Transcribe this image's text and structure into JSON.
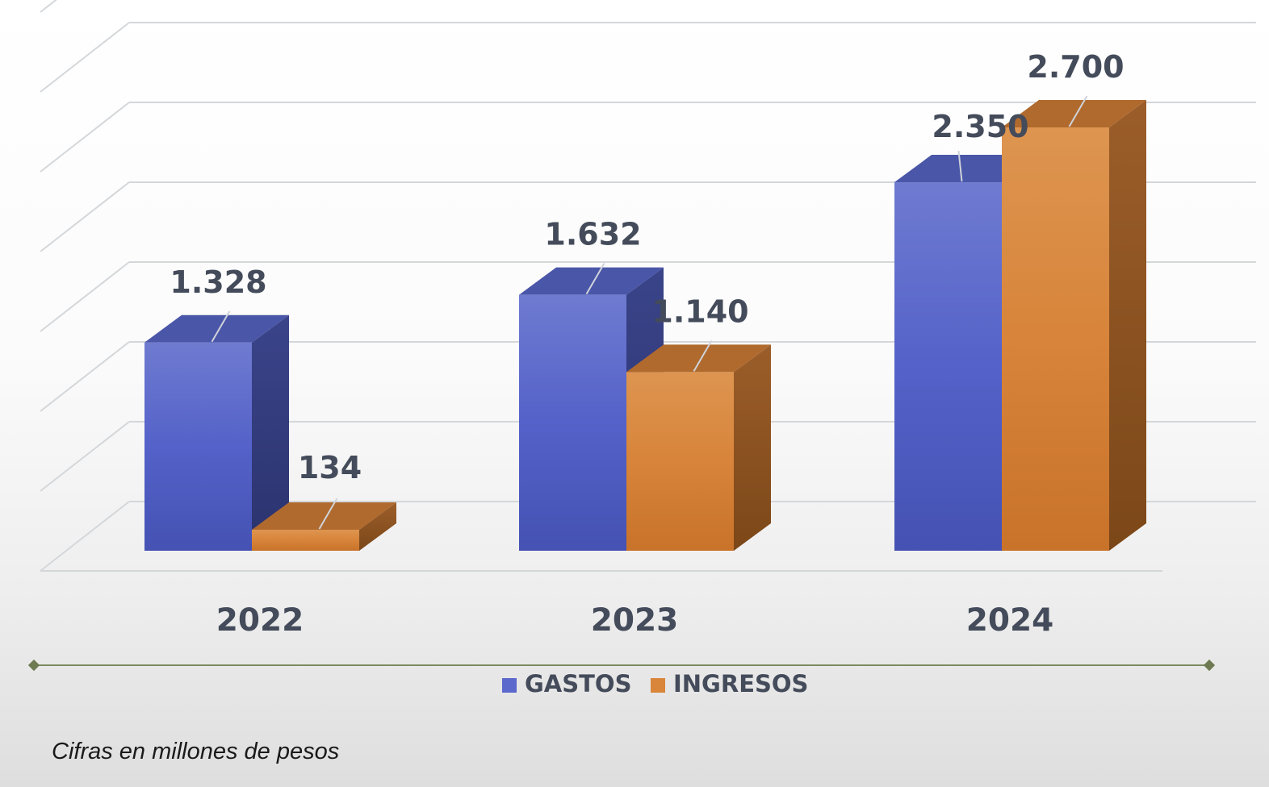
{
  "chart_data": {
    "type": "bar",
    "style": "3d-clustered-column",
    "categories": [
      "2022",
      "2023",
      "2024"
    ],
    "series": [
      {
        "name": "GASTOS",
        "values": [
          1328,
          1632,
          2350
        ],
        "labels": [
          "1.328",
          "1.632",
          "2.350"
        ],
        "color": "#5b68cc"
      },
      {
        "name": "INGRESOS",
        "values": [
          134,
          1140,
          2700
        ],
        "labels": [
          "134",
          "1.140",
          "2.700"
        ],
        "color": "#d9853a"
      }
    ],
    "ylim": [
      0,
      3500
    ],
    "grid": true,
    "legend_position": "bottom"
  },
  "note": "Cifras en millones de pesos",
  "colors": {
    "label_text": "#444b5a",
    "grid": "#d4d7da",
    "legend_line": "#7c8a62"
  }
}
